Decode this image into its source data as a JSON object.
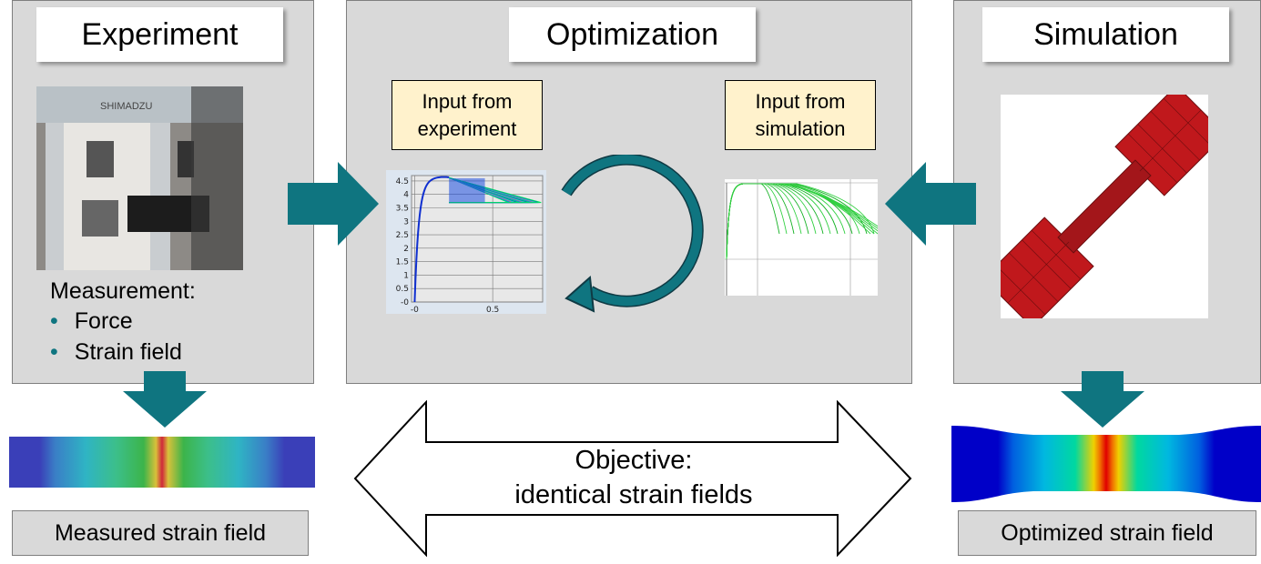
{
  "experiment": {
    "title": "Experiment",
    "measurement_label": "Measurement:",
    "bullets": [
      "Force",
      "Strain field"
    ],
    "output_label": "Measured strain field",
    "photo_brand": "SHIMADZU"
  },
  "optimization": {
    "title": "Optimization",
    "input_experiment": [
      "Input from",
      "experiment"
    ],
    "input_simulation": [
      "Input from",
      "simulation"
    ]
  },
  "simulation": {
    "title": "Simulation",
    "output_label": "Optimized strain field"
  },
  "objective": {
    "line1": "Objective:",
    "line2": "identical strain fields"
  },
  "colors": {
    "panel": "#d9d9d9",
    "arrow": "#0f7580",
    "input_box": "#fff2cc",
    "specimen": "#c0181c"
  },
  "chart_data": [
    {
      "type": "line",
      "yticks": [
        "-0",
        "0.5",
        "1",
        "1.5",
        "2",
        "2.5",
        "3",
        "3.5",
        "4",
        "4.5"
      ],
      "xticks": [
        "-0",
        "0.5"
      ],
      "ylim": [
        0,
        4.7
      ],
      "xlim": [
        -0.02,
        0.82
      ],
      "grid": true
    },
    {
      "type": "line",
      "grid": true
    }
  ]
}
